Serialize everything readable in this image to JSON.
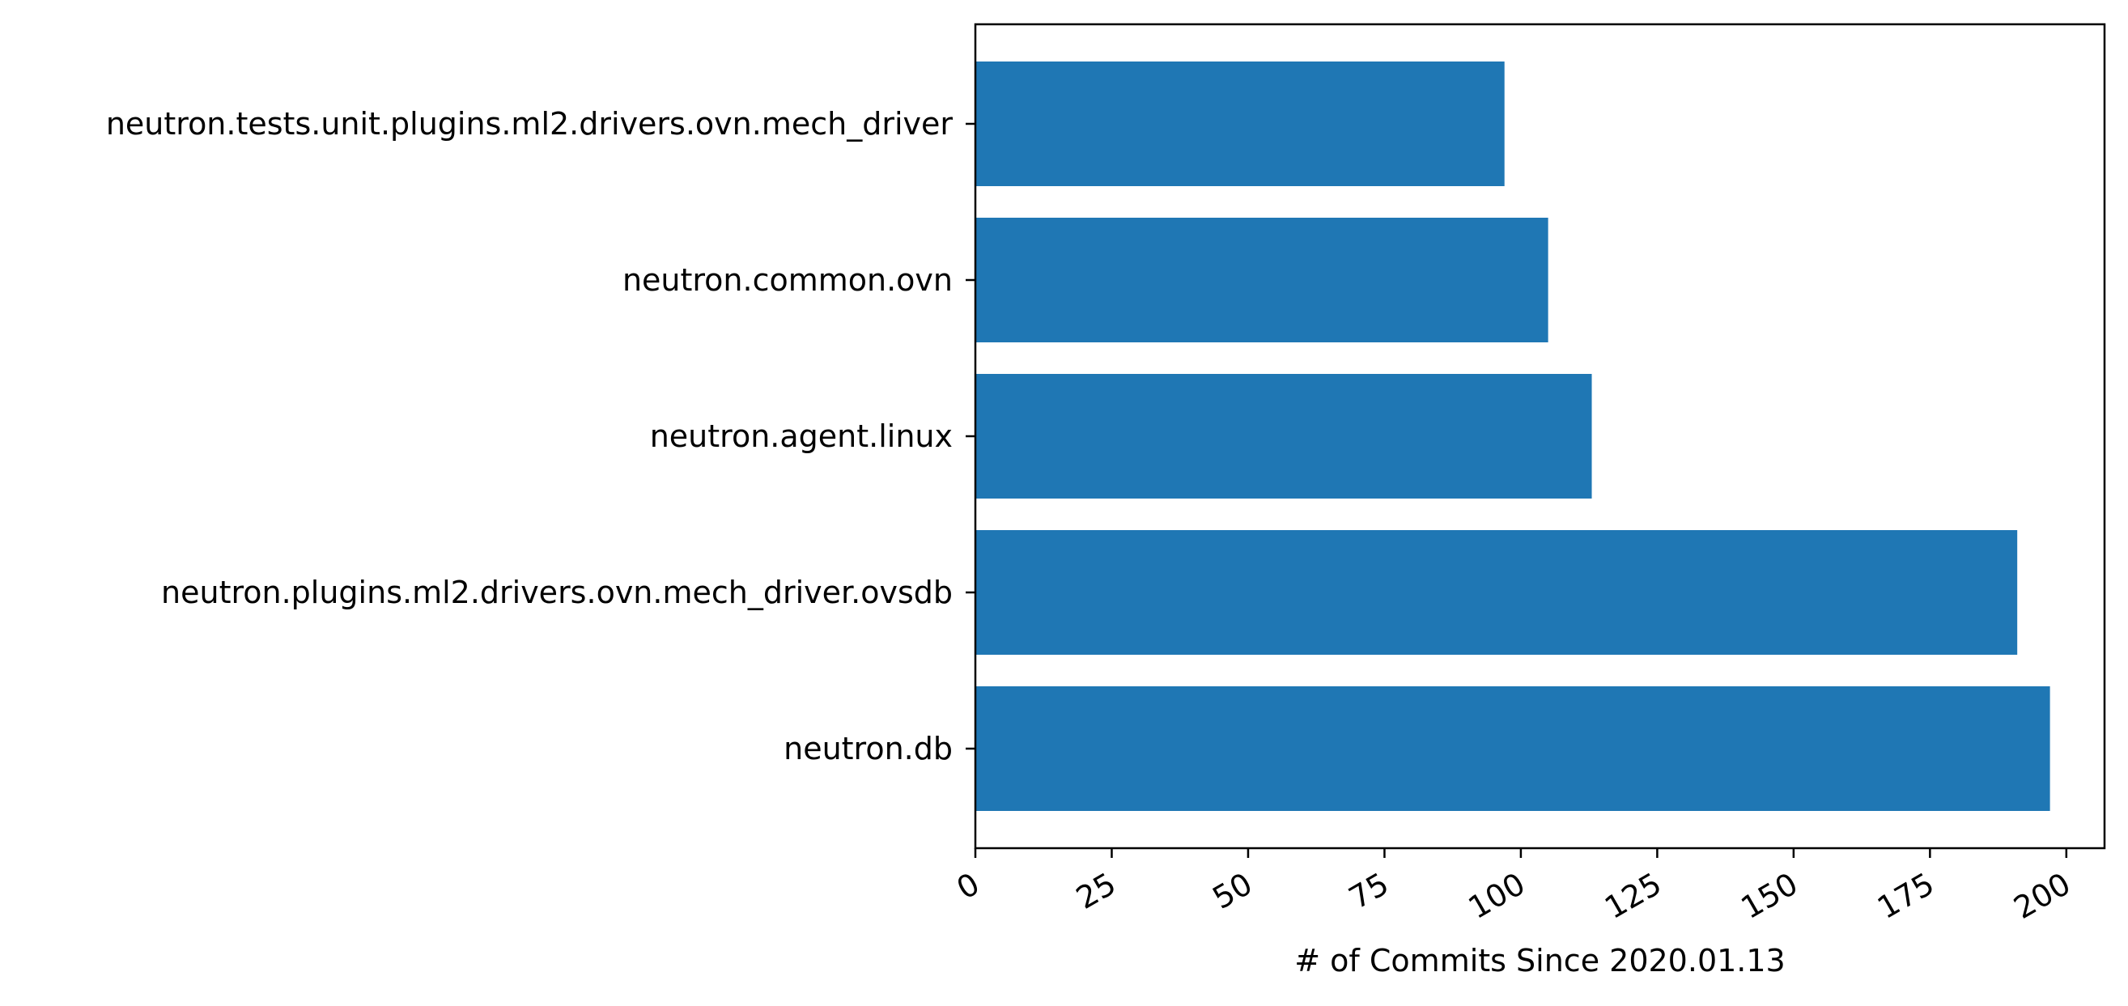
{
  "chart_data": {
    "type": "bar",
    "orientation": "horizontal",
    "categories": [
      "neutron.db",
      "neutron.plugins.ml2.drivers.ovn.mech_driver.ovsdb",
      "neutron.agent.linux",
      "neutron.common.ovn",
      "neutron.tests.unit.plugins.ml2.drivers.ovn.mech_driver"
    ],
    "values": [
      197,
      191,
      113,
      105,
      97
    ],
    "title": "",
    "xlabel": "# of Commits Since 2020.01.13",
    "ylabel": "",
    "xlim": [
      0,
      207
    ],
    "xticks": [
      0,
      25,
      50,
      75,
      100,
      125,
      150,
      175,
      200
    ],
    "xtick_labels": [
      "0",
      "25",
      "50",
      "75",
      "100",
      "125",
      "150",
      "175",
      "200"
    ],
    "xtick_rotation_deg": 30,
    "bar_color": "#1f77b4",
    "grid": false,
    "legend": "none"
  }
}
